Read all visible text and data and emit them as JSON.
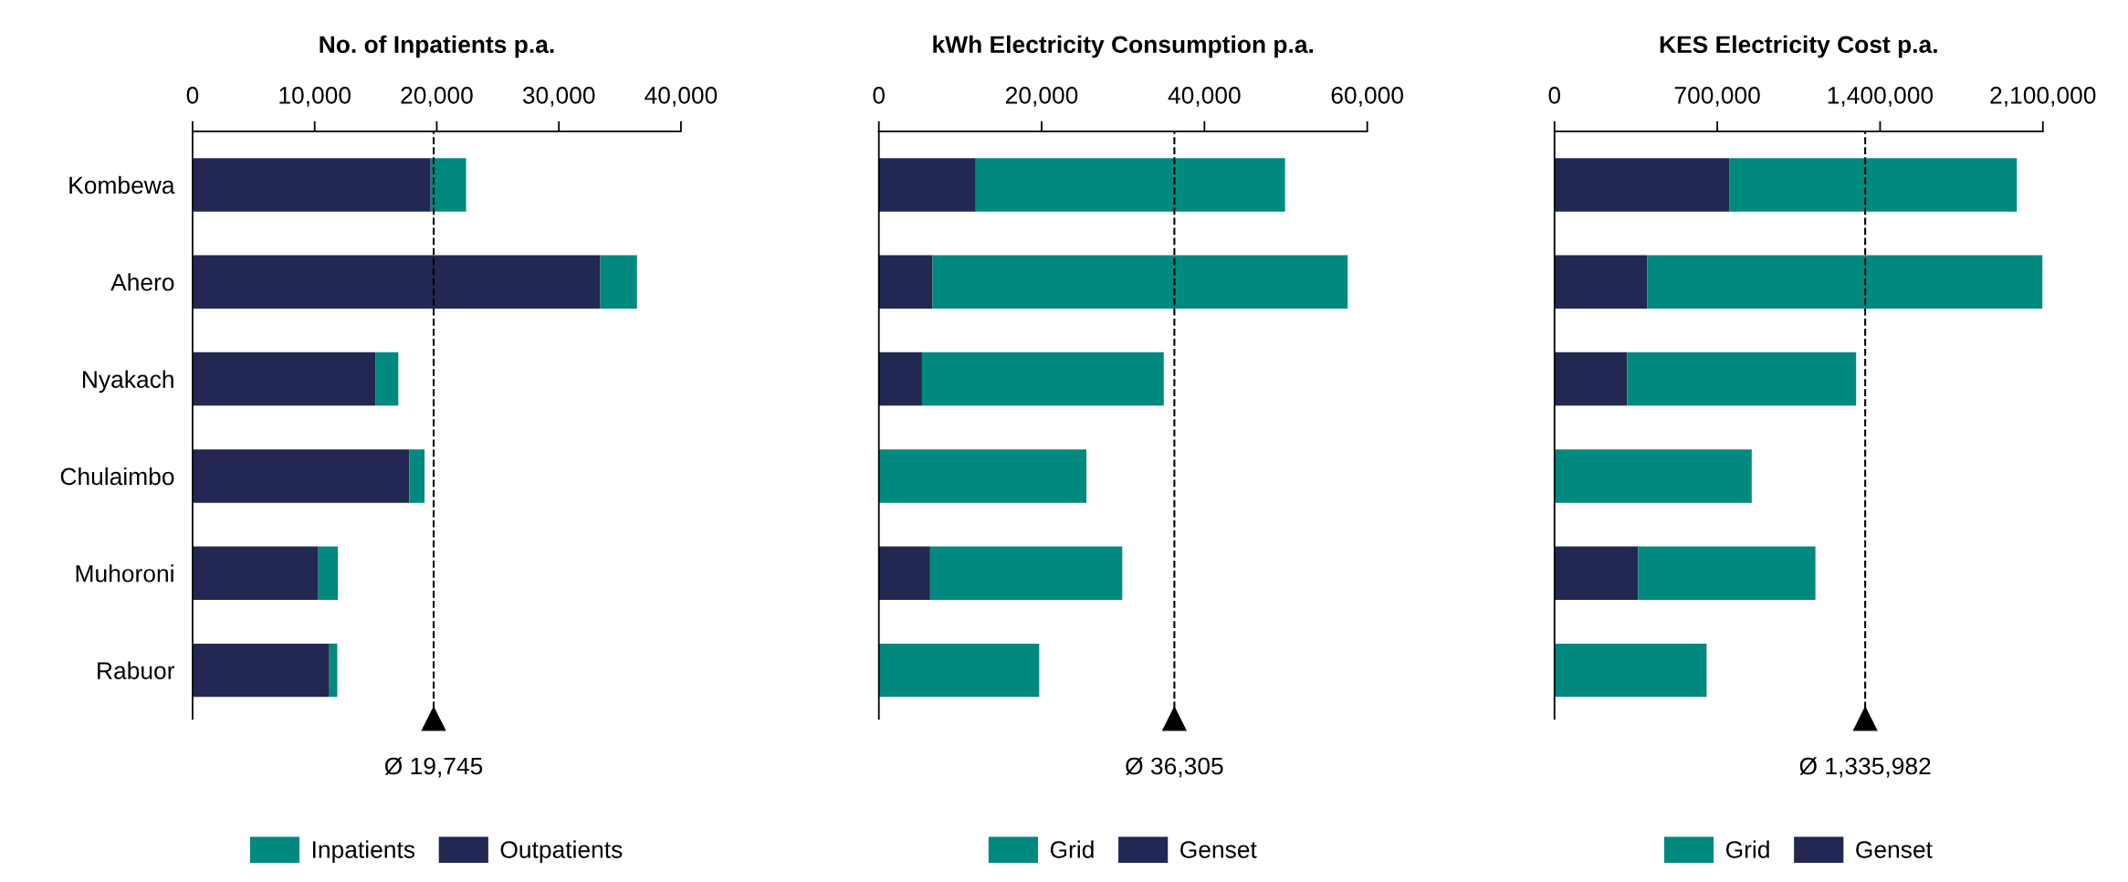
{
  "chart_data": [
    {
      "type": "bar",
      "orientation": "horizontal",
      "stacked": true,
      "title": "No. of Inpatients p.a.",
      "categories": [
        "Kombewa",
        "Ahero",
        "Nyakach",
        "Chulaimbo",
        "Muhoroni",
        "Rabuor"
      ],
      "series": [
        {
          "name": "Outpatients",
          "color": "#222851",
          "values": [
            19500,
            33400,
            15000,
            17750,
            10300,
            11200
          ]
        },
        {
          "name": "Inpatients",
          "color": "#00897f",
          "values": [
            2900,
            3000,
            1850,
            1250,
            1600,
            650
          ]
        }
      ],
      "xlim": [
        0,
        40000
      ],
      "xticks": [
        {
          "value": 0,
          "label": "0"
        },
        {
          "value": 10000,
          "label": "10,000"
        },
        {
          "value": 20000,
          "label": "20,000"
        },
        {
          "value": 30000,
          "label": "30,000"
        },
        {
          "value": 40000,
          "label": "40,000"
        }
      ],
      "ref_lines": [
        {
          "axis": "x",
          "value": 19745,
          "label": "Ø 19,745",
          "line_style": "dashed",
          "color": "#000000"
        }
      ],
      "legend": "bottom",
      "grid": false
    },
    {
      "type": "bar",
      "orientation": "horizontal",
      "stacked": true,
      "title": "kWh Electricity Consumption p.a.",
      "categories": [
        null,
        null,
        null,
        null,
        null,
        null
      ],
      "series": [
        {
          "name": "Genset",
          "color": "#222851",
          "values": [
            11900,
            6600,
            5300,
            0,
            6300,
            0
          ]
        },
        {
          "name": "Grid",
          "color": "#00897f",
          "values": [
            38000,
            51000,
            29700,
            25500,
            23600,
            19700
          ]
        }
      ],
      "xlim": [
        0,
        60000
      ],
      "xticks": [
        {
          "value": 0,
          "label": "0"
        },
        {
          "value": 20000,
          "label": "20,000"
        },
        {
          "value": 40000,
          "label": "40,000"
        },
        {
          "value": 60000,
          "label": "60,000"
        }
      ],
      "ref_lines": [
        {
          "axis": "x",
          "value": 36305,
          "label": "Ø 36,305",
          "line_style": "dashed",
          "color": "#000000"
        }
      ],
      "legend": "bottom",
      "tick_labels": "x",
      "grid": false
    },
    {
      "type": "bar",
      "orientation": "horizontal",
      "stacked": true,
      "title": "KES Electricity Cost p.a.",
      "categories": [
        null,
        null,
        null,
        null,
        null,
        null
      ],
      "series": [
        {
          "name": "Genset",
          "color": "#222851",
          "values": [
            751000,
            398000,
            312000,
            0,
            360000,
            0
          ]
        },
        {
          "name": "Grid",
          "color": "#00897f",
          "values": [
            1237000,
            1700000,
            985000,
            848000,
            762000,
            654000
          ]
        }
      ],
      "xlim": [
        0,
        2100000
      ],
      "xticks": [
        {
          "value": 0,
          "label": "0"
        },
        {
          "value": 700000,
          "label": "700,000"
        },
        {
          "value": 1400000,
          "label": "1,400,000"
        },
        {
          "value": 2100000,
          "label": "2,100,000"
        }
      ],
      "ref_lines": [
        {
          "axis": "x",
          "value": 1335982,
          "label": "Ø 1,335,982",
          "line_style": "dashed",
          "color": "#000000"
        }
      ],
      "legend": "bottom",
      "tick_labels": "x",
      "grid": false
    }
  ]
}
